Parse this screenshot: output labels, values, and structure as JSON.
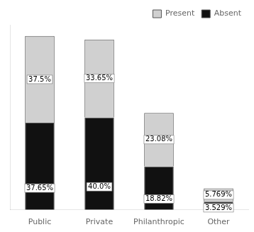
{
  "chart_data": {
    "type": "bar",
    "stacked": true,
    "categories": [
      "Public",
      "Private",
      "Philanthropic",
      "Other"
    ],
    "series": [
      {
        "name": "Absent",
        "color": "#111111",
        "values": [
          37.65,
          40.0,
          18.82,
          3.529
        ],
        "value_labels": [
          "37.65%",
          "40.0%",
          "18.82%",
          "3.529%"
        ]
      },
      {
        "name": "Present",
        "color": "#d0d0d0",
        "values": [
          37.5,
          33.65,
          23.08,
          5.769
        ],
        "value_labels": [
          "37.5%",
          "33.65%",
          "23.08%",
          "5.769%"
        ]
      }
    ],
    "ylim": [
      0,
      80
    ],
    "legend": "upper right",
    "grid": false,
    "data_labels": true,
    "tick_labels": "x"
  }
}
